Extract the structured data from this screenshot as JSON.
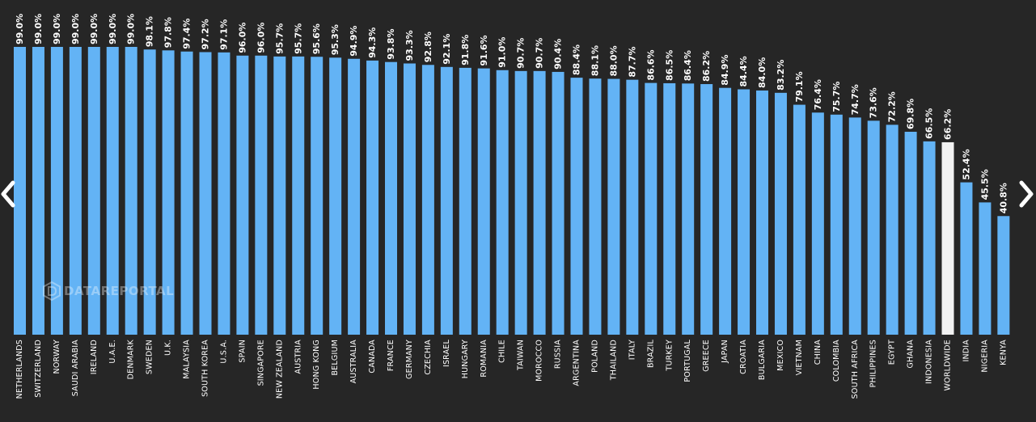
{
  "watermark": {
    "text": "DATAREPORTAL",
    "icon": "datareportal-logo-icon"
  },
  "navigation": {
    "prev_icon": "chevron-left-icon",
    "next_icon": "chevron-right-icon"
  },
  "colors": {
    "background": "#262626",
    "bar": "#63b3f5",
    "highlight_bar": "#f2f2f2",
    "text": "#ffffff"
  },
  "chart_data": {
    "type": "bar",
    "categories": [
      "NETHERLANDS",
      "SWITZERLAND",
      "NORWAY",
      "SAUDI ARABIA",
      "IRELAND",
      "U.A.E.",
      "DENMARK",
      "SWEDEN",
      "U.K.",
      "MALAYSIA",
      "SOUTH KOREA",
      "U.S.A.",
      "SPAIN",
      "SINGAPORE",
      "NEW ZEALAND",
      "AUSTRIA",
      "HONG KONG",
      "BELGIUM",
      "AUSTRALIA",
      "CANADA",
      "FRANCE",
      "GERMANY",
      "CZECHIA",
      "ISRAEL",
      "HUNGARY",
      "ROMANIA",
      "CHILE",
      "TAIWAN",
      "MOROCCO",
      "RUSSIA",
      "ARGENTINA",
      "POLAND",
      "THAILAND",
      "ITALY",
      "BRAZIL",
      "TURKEY",
      "PORTUGAL",
      "GREECE",
      "JAPAN",
      "CROATIA",
      "BULGARIA",
      "MEXICO",
      "VIETNAM",
      "CHINA",
      "COLOMBIA",
      "SOUTH AFRICA",
      "PHILIPPINES",
      "EGYPT",
      "GHANA",
      "INDONESIA",
      "WORLDWIDE",
      "INDIA",
      "NIGERIA",
      "KENYA"
    ],
    "values": [
      99.0,
      99.0,
      99.0,
      99.0,
      99.0,
      99.0,
      99.0,
      98.1,
      97.8,
      97.4,
      97.2,
      97.1,
      96.0,
      96.0,
      95.7,
      95.7,
      95.6,
      95.3,
      94.9,
      94.3,
      93.8,
      93.3,
      92.8,
      92.1,
      91.8,
      91.6,
      91.0,
      90.7,
      90.7,
      90.4,
      88.4,
      88.1,
      88.0,
      87.7,
      86.6,
      86.5,
      86.4,
      86.2,
      84.9,
      84.4,
      84.0,
      83.2,
      79.1,
      76.4,
      75.7,
      74.7,
      73.6,
      72.2,
      69.8,
      66.5,
      66.2,
      52.4,
      45.5,
      40.8
    ],
    "value_labels": [
      "99.0%",
      "99.0%",
      "99.0%",
      "99.0%",
      "99.0%",
      "99.0%",
      "99.0%",
      "98.1%",
      "97.8%",
      "97.4%",
      "97.2%",
      "97.1%",
      "96.0%",
      "96.0%",
      "95.7%",
      "95.7%",
      "95.6%",
      "95.3%",
      "94.9%",
      "94.3%",
      "93.8%",
      "93.3%",
      "92.8%",
      "92.1%",
      "91.8%",
      "91.6%",
      "91.0%",
      "90.7%",
      "90.7%",
      "90.4%",
      "88.4%",
      "88.1%",
      "88.0%",
      "87.7%",
      "86.6%",
      "86.5%",
      "86.4%",
      "86.2%",
      "84.9%",
      "84.4%",
      "84.0%",
      "83.2%",
      "79.1%",
      "76.4%",
      "75.7%",
      "74.7%",
      "73.6%",
      "72.2%",
      "69.8%",
      "66.5%",
      "66.2%",
      "52.4%",
      "45.5%",
      "40.8%"
    ],
    "highlight_category": "WORLDWIDE",
    "ylim": [
      0,
      100
    ],
    "grid": false,
    "legend": "none",
    "title": "",
    "xlabel": "",
    "ylabel": ""
  }
}
